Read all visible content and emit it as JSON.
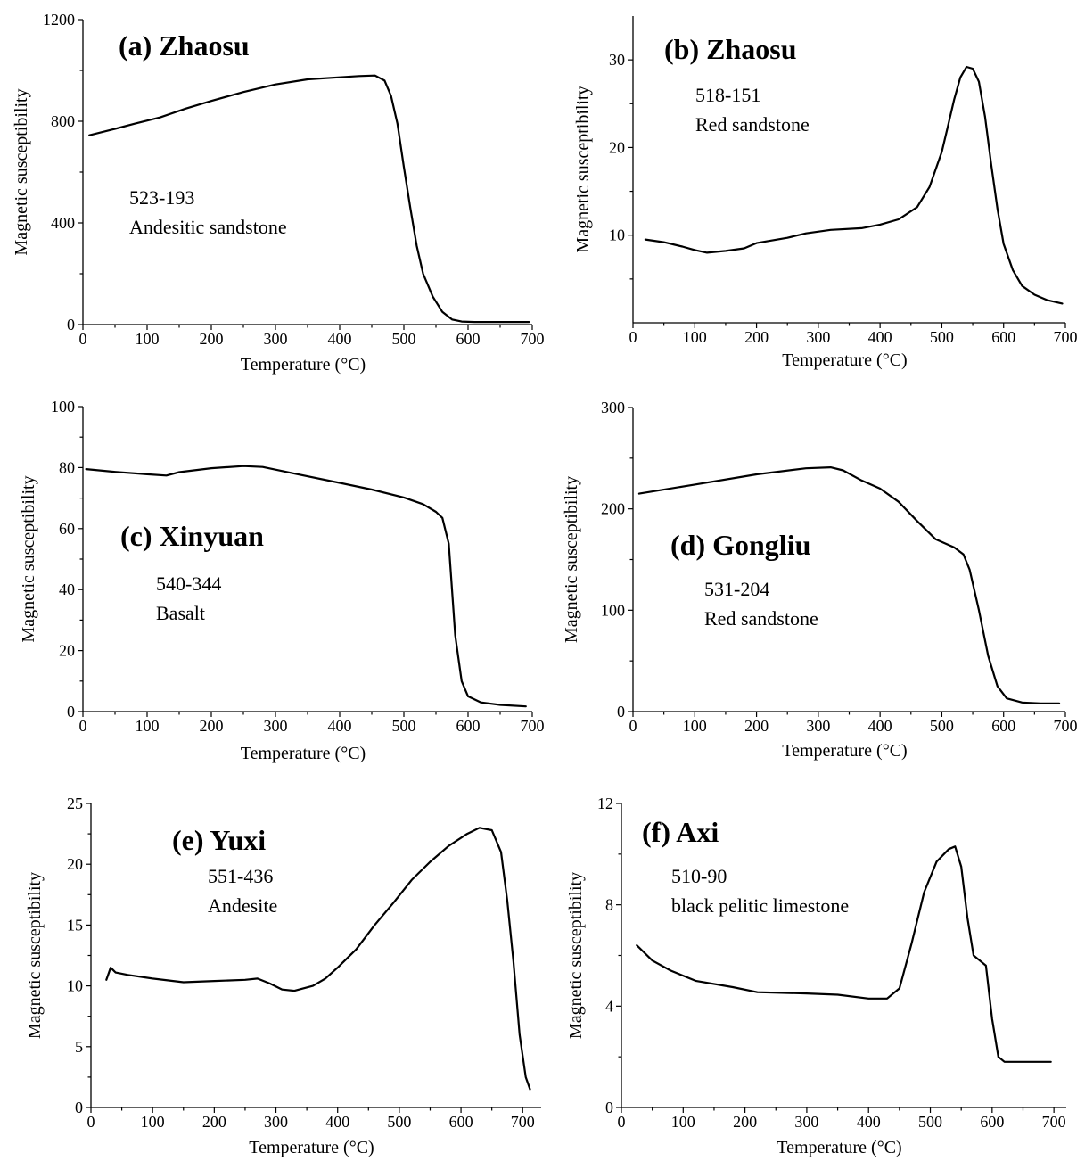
{
  "chart_data": [
    {
      "type": "line",
      "title": "(a) Zhaosu",
      "annotation": [
        "523-193",
        "Andesitic sandstone"
      ],
      "xlabel": "Temperature (°C)",
      "ylabel": "Magnetic susceptibility",
      "xlim": [
        0,
        700
      ],
      "ylim": [
        0,
        1200
      ],
      "xticks": [
        0,
        100,
        200,
        300,
        400,
        500,
        600,
        700
      ],
      "yticks": [
        0,
        400,
        800,
        1200
      ],
      "series": [
        {
          "points": [
            [
              10,
              745
            ],
            [
              50,
              770
            ],
            [
              80,
              790
            ],
            [
              120,
              815
            ],
            [
              160,
              850
            ],
            [
              200,
              880
            ],
            [
              250,
              915
            ],
            [
              300,
              945
            ],
            [
              350,
              965
            ],
            [
              400,
              973
            ],
            [
              430,
              978
            ],
            [
              455,
              980
            ],
            [
              470,
              960
            ],
            [
              480,
              900
            ],
            [
              490,
              790
            ],
            [
              500,
              620
            ],
            [
              510,
              460
            ],
            [
              520,
              310
            ],
            [
              530,
              200
            ],
            [
              545,
              110
            ],
            [
              560,
              50
            ],
            [
              575,
              20
            ],
            [
              590,
              12
            ],
            [
              610,
              10
            ],
            [
              650,
              10
            ],
            [
              695,
              10
            ]
          ]
        }
      ]
    },
    {
      "type": "line",
      "title": "(b) Zhaosu",
      "annotation": [
        "518-151",
        "Red sandstone"
      ],
      "xlabel": "Temperature (°C)",
      "ylabel": "Magnetic susceptibility",
      "xlim": [
        0,
        700
      ],
      "ylim": [
        0,
        35
      ],
      "xticks": [
        0,
        100,
        200,
        300,
        400,
        500,
        600,
        700
      ],
      "yticks": [
        10,
        20,
        30
      ],
      "series": [
        {
          "points": [
            [
              20,
              9.5
            ],
            [
              50,
              9.2
            ],
            [
              80,
              8.7
            ],
            [
              100,
              8.3
            ],
            [
              120,
              8.0
            ],
            [
              150,
              8.2
            ],
            [
              180,
              8.5
            ],
            [
              200,
              9.1
            ],
            [
              250,
              9.7
            ],
            [
              280,
              10.2
            ],
            [
              320,
              10.6
            ],
            [
              370,
              10.8
            ],
            [
              400,
              11.2
            ],
            [
              430,
              11.8
            ],
            [
              460,
              13.2
            ],
            [
              480,
              15.5
            ],
            [
              500,
              19.5
            ],
            [
              510,
              22.5
            ],
            [
              520,
              25.5
            ],
            [
              530,
              28.0
            ],
            [
              540,
              29.2
            ],
            [
              550,
              29.0
            ],
            [
              560,
              27.5
            ],
            [
              570,
              23.5
            ],
            [
              580,
              18.0
            ],
            [
              590,
              13.0
            ],
            [
              600,
              9.0
            ],
            [
              615,
              6.0
            ],
            [
              630,
              4.2
            ],
            [
              650,
              3.2
            ],
            [
              670,
              2.6
            ],
            [
              695,
              2.2
            ]
          ]
        }
      ]
    },
    {
      "type": "line",
      "title": "(c) Xinyuan",
      "annotation": [
        "540-344",
        "Basalt"
      ],
      "xlabel": "Temperature (°C)",
      "ylabel": "Magnetic susceptibility",
      "xlim": [
        0,
        700
      ],
      "ylim": [
        0,
        100
      ],
      "xticks": [
        0,
        100,
        200,
        300,
        400,
        500,
        600,
        700
      ],
      "yticks": [
        0,
        20,
        40,
        60,
        80,
        100
      ],
      "series": [
        {
          "points": [
            [
              5,
              79.5
            ],
            [
              50,
              78.6
            ],
            [
              100,
              77.8
            ],
            [
              130,
              77.4
            ],
            [
              150,
              78.5
            ],
            [
              200,
              79.8
            ],
            [
              250,
              80.5
            ],
            [
              280,
              80.2
            ],
            [
              330,
              78.0
            ],
            [
              400,
              75.0
            ],
            [
              450,
              72.8
            ],
            [
              500,
              70.2
            ],
            [
              530,
              68.0
            ],
            [
              550,
              65.5
            ],
            [
              560,
              63.5
            ],
            [
              570,
              55.0
            ],
            [
              575,
              40.0
            ],
            [
              580,
              25.0
            ],
            [
              590,
              10.0
            ],
            [
              600,
              5.0
            ],
            [
              620,
              3.0
            ],
            [
              650,
              2.2
            ],
            [
              690,
              1.7
            ]
          ]
        }
      ]
    },
    {
      "type": "line",
      "title": "(d) Gongliu",
      "annotation": [
        "531-204",
        "Red sandstone"
      ],
      "xlabel": "Temperature (°C)",
      "ylabel": "Magnetic susceptibility",
      "xlim": [
        0,
        700
      ],
      "ylim": [
        0,
        300
      ],
      "xticks": [
        0,
        100,
        200,
        300,
        400,
        500,
        600,
        700
      ],
      "yticks": [
        0,
        100,
        200,
        300
      ],
      "series": [
        {
          "points": [
            [
              10,
              215
            ],
            [
              100,
              224
            ],
            [
              200,
              234
            ],
            [
              280,
              240
            ],
            [
              320,
              241
            ],
            [
              340,
              238
            ],
            [
              370,
              228
            ],
            [
              400,
              220
            ],
            [
              430,
              207
            ],
            [
              460,
              188
            ],
            [
              490,
              170
            ],
            [
              520,
              162
            ],
            [
              535,
              155
            ],
            [
              545,
              140
            ],
            [
              560,
              100
            ],
            [
              575,
              55
            ],
            [
              590,
              25
            ],
            [
              605,
              13
            ],
            [
              630,
              9
            ],
            [
              660,
              8
            ],
            [
              690,
              8
            ]
          ]
        }
      ]
    },
    {
      "type": "line",
      "title": "(e) Yuxi",
      "annotation": [
        "551-436",
        "Andesite"
      ],
      "xlabel": "Temperature (°C)",
      "ylabel": "Magnetic susceptibility",
      "xlim": [
        0,
        730
      ],
      "ylim": [
        0,
        25
      ],
      "xticks": [
        0,
        100,
        200,
        300,
        400,
        500,
        600,
        700
      ],
      "yticks": [
        0,
        5,
        10,
        15,
        20,
        25
      ],
      "series": [
        {
          "points": [
            [
              25,
              10.5
            ],
            [
              32,
              11.5
            ],
            [
              40,
              11.1
            ],
            [
              60,
              10.9
            ],
            [
              100,
              10.6
            ],
            [
              150,
              10.3
            ],
            [
              200,
              10.4
            ],
            [
              250,
              10.5
            ],
            [
              270,
              10.6
            ],
            [
              290,
              10.2
            ],
            [
              310,
              9.7
            ],
            [
              330,
              9.6
            ],
            [
              360,
              10.0
            ],
            [
              380,
              10.6
            ],
            [
              400,
              11.5
            ],
            [
              430,
              13.0
            ],
            [
              460,
              15.0
            ],
            [
              490,
              16.8
            ],
            [
              520,
              18.7
            ],
            [
              550,
              20.2
            ],
            [
              580,
              21.5
            ],
            [
              610,
              22.5
            ],
            [
              630,
              23.0
            ],
            [
              650,
              22.8
            ],
            [
              665,
              21.0
            ],
            [
              675,
              17.0
            ],
            [
              685,
              12.0
            ],
            [
              695,
              6.0
            ],
            [
              705,
              2.5
            ],
            [
              712,
              1.5
            ]
          ]
        }
      ]
    },
    {
      "type": "line",
      "title": "(f) Axi",
      "annotation": [
        "510-90",
        "black pelitic limestone"
      ],
      "xlabel": "Temperature (°C)",
      "ylabel": "Magnetic susceptibility",
      "xlim": [
        0,
        720
      ],
      "ylim": [
        0,
        12
      ],
      "xticks": [
        0,
        100,
        200,
        300,
        400,
        500,
        600,
        700
      ],
      "yticks": [
        0,
        4,
        8,
        12
      ],
      "series": [
        {
          "points": [
            [
              25,
              6.4
            ],
            [
              50,
              5.8
            ],
            [
              80,
              5.4
            ],
            [
              120,
              5.0
            ],
            [
              180,
              4.75
            ],
            [
              220,
              4.55
            ],
            [
              300,
              4.5
            ],
            [
              350,
              4.45
            ],
            [
              400,
              4.3
            ],
            [
              430,
              4.3
            ],
            [
              450,
              4.7
            ],
            [
              470,
              6.5
            ],
            [
              490,
              8.5
            ],
            [
              510,
              9.7
            ],
            [
              530,
              10.2
            ],
            [
              540,
              10.3
            ],
            [
              550,
              9.5
            ],
            [
              560,
              7.5
            ],
            [
              570,
              6.0
            ],
            [
              580,
              5.8
            ],
            [
              590,
              5.6
            ],
            [
              600,
              3.5
            ],
            [
              610,
              2.0
            ],
            [
              620,
              1.8
            ],
            [
              650,
              1.8
            ],
            [
              695,
              1.8
            ]
          ]
        }
      ]
    }
  ]
}
